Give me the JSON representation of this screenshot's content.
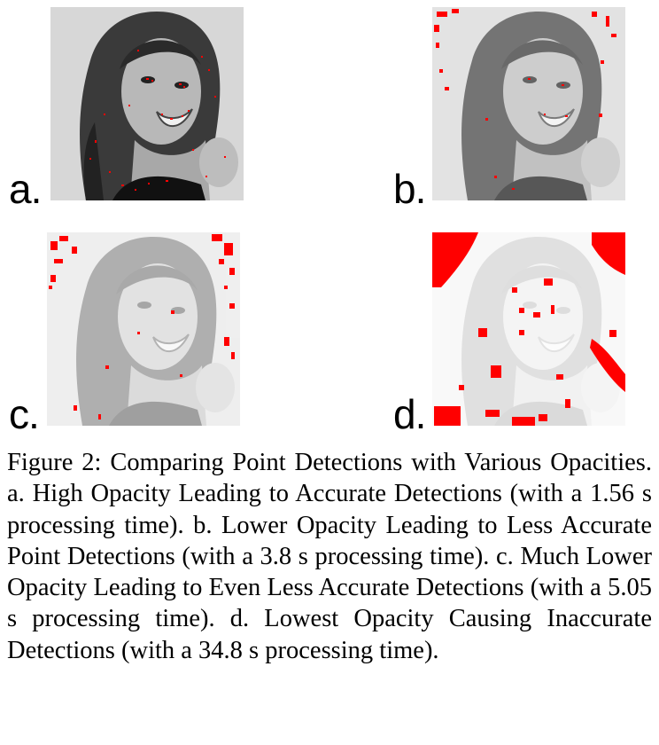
{
  "figure": {
    "panels": [
      {
        "id": "a",
        "label": "a.",
        "photo_opacity": 1.0,
        "detection_color": "#ff0000",
        "processing_time_s": 1.56
      },
      {
        "id": "b",
        "label": "b.",
        "photo_opacity": 0.7,
        "detection_color": "#ff0000",
        "processing_time_s": 3.8
      },
      {
        "id": "c",
        "label": "c.",
        "photo_opacity": 0.4,
        "detection_color": "#ff0000",
        "processing_time_s": 5.05
      },
      {
        "id": "d",
        "label": "d.",
        "photo_opacity": 0.15,
        "detection_color": "#ff0000",
        "processing_time_s": 34.8
      }
    ],
    "caption": "Figure 2: Comparing Point Detections with Various Opacities. a. High Opacity Leading to Accurate Detections (with a 1.56 s processing time). b. Lower Opacity Leading to Less Accurate Point Detections (with a 3.8 s processing time). c. Much Lower Opacity Leading to Even Less Accurate Detections (with a 5.05 s processing time). d. Lowest Opacity Causing Inaccurate Detections (with a 34.8 s processing time)."
  }
}
